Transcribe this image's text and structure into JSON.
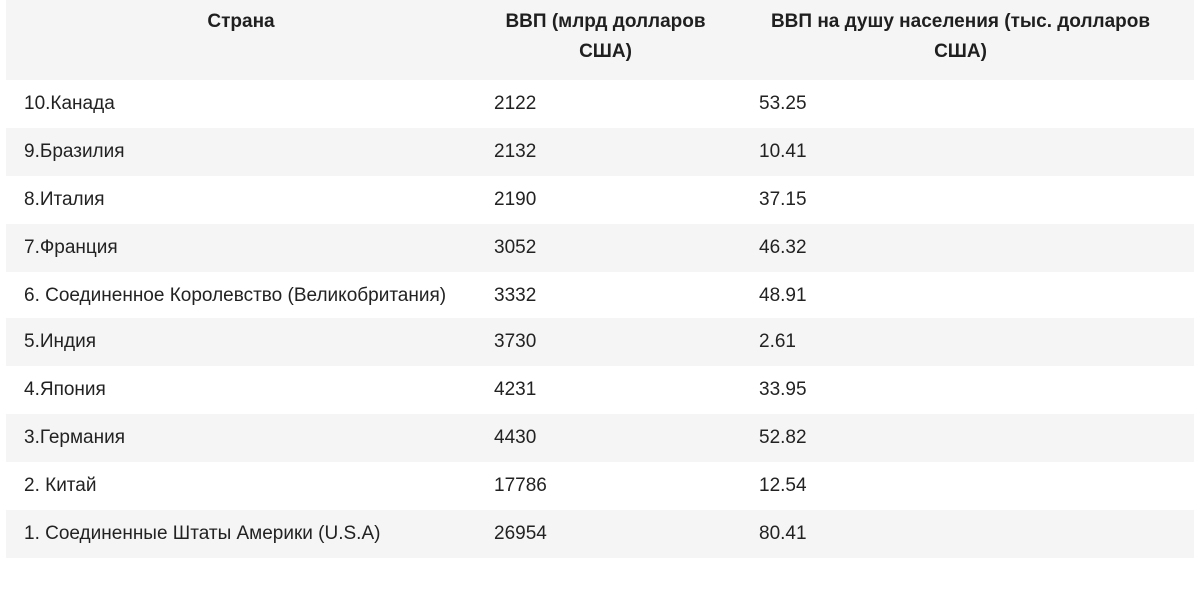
{
  "table": {
    "headers": [
      "Страна",
      "ВВП (млрд долларов США)",
      "ВВП на душу населения (тыс. долларов США)"
    ],
    "rows": [
      {
        "country": "10.Канада",
        "gdp": "2122",
        "per_capita": "53.25"
      },
      {
        "country": "9.Бразилия",
        "gdp": "2132",
        "per_capita": "10.41"
      },
      {
        "country": "8.Италия",
        "gdp": "2190",
        "per_capita": "37.15"
      },
      {
        "country": "7.Франция",
        "gdp": "3052",
        "per_capita": "46.32"
      },
      {
        "country": "6. Соединенное Королевство (Великобритания)",
        "gdp": "3332",
        "per_capita": "48.91"
      },
      {
        "country": "5.Индия",
        "gdp": "3730",
        "per_capita": "2.61"
      },
      {
        "country": "4.Япония",
        "gdp": "4231",
        "per_capita": "33.95"
      },
      {
        "country": "3.Германия",
        "gdp": "4430",
        "per_capita": "52.82"
      },
      {
        "country": "2. Китай",
        "gdp": "17786",
        "per_capita": "12.54"
      },
      {
        "country": "1. Соединенные Штаты Америки (U.S.A)",
        "gdp": "26954",
        "per_capita": "80.41"
      }
    ]
  }
}
